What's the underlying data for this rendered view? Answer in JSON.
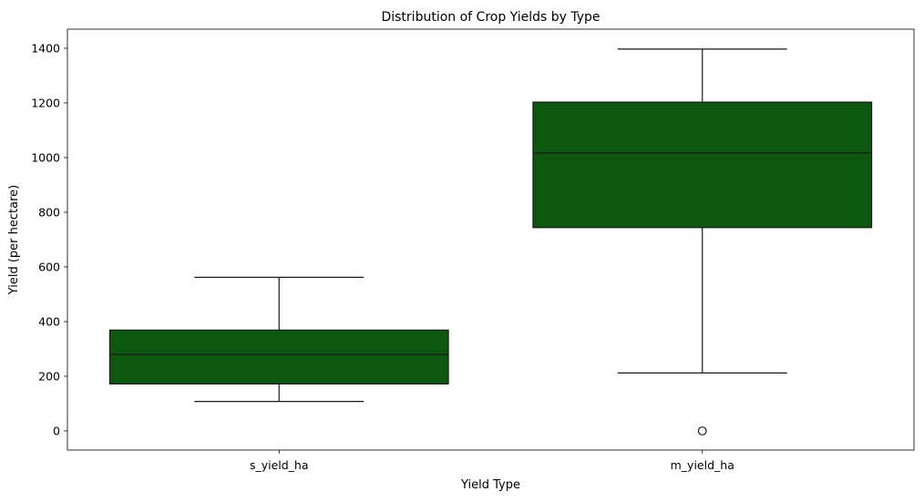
{
  "chart_data": {
    "type": "box",
    "title": "Distribution of Crop Yields by Type",
    "xlabel": "Yield Type",
    "ylabel": "Yield (per hectare)",
    "ylim": [
      -70,
      1470
    ],
    "yticks": [
      0,
      200,
      400,
      600,
      800,
      1000,
      1200,
      1400
    ],
    "categories": [
      "s_yield_ha",
      "m_yield_ha"
    ],
    "boxes": [
      {
        "category": "s_yield_ha",
        "whisker_low": 108,
        "q1": 172,
        "median": 280,
        "q3": 369,
        "whisker_high": 562,
        "outliers": []
      },
      {
        "category": "m_yield_ha",
        "whisker_low": 212,
        "q1": 744,
        "median": 1017,
        "q3": 1203,
        "whisker_high": 1397,
        "outliers": [
          0
        ]
      }
    ],
    "box_color": "#0c580f",
    "line_color": "#1a1a1a",
    "grid": false,
    "legend": "none"
  }
}
